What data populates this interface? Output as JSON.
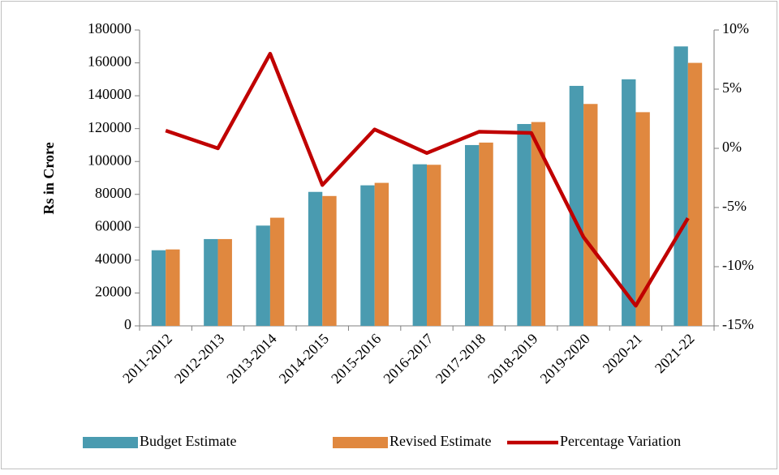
{
  "chart_data": {
    "type": "bar-line",
    "y_label": "Rs in Crore",
    "categories": [
      "2011-2012",
      "2012-2013",
      "2013-2014",
      "2014-2015",
      "2015-2016",
      "2016-2017",
      "2017-2018",
      "2018-2019",
      "2019-2020",
      "2020-21",
      "2021-22"
    ],
    "series": [
      {
        "name": "Budget Estimate",
        "type": "bar",
        "color": "#4a9bb0",
        "values": [
          46000,
          52800,
          61000,
          81500,
          85500,
          98300,
          110000,
          122800,
          146000,
          150000,
          170000
        ]
      },
      {
        "name": "Revised Estimate",
        "type": "bar",
        "color": "#e0883f",
        "values": [
          46500,
          52800,
          65800,
          79000,
          87000,
          98000,
          111500,
          124000,
          135000,
          130000,
          160000
        ]
      },
      {
        "name": "Percentage Variation",
        "type": "line",
        "axis": "y2",
        "color": "#c00000",
        "values": [
          1.5,
          0,
          8,
          -3.1,
          1.6,
          -0.4,
          1.4,
          1.3,
          -7.5,
          -13.3,
          -5.9
        ]
      }
    ],
    "ylim": [
      0,
      180000
    ],
    "yticks": [
      0,
      20000,
      40000,
      60000,
      80000,
      100000,
      120000,
      140000,
      160000,
      180000
    ],
    "y2lim": [
      -15,
      10
    ],
    "y2ticks": [
      {
        "value": -15,
        "label": "-15%"
      },
      {
        "value": -10,
        "label": "-10%"
      },
      {
        "value": -5,
        "label": "-5%"
      },
      {
        "value": 0,
        "label": "0%"
      },
      {
        "value": 5,
        "label": "5%"
      },
      {
        "value": 10,
        "label": "10%"
      }
    ],
    "legend": "bottom",
    "grid": false
  }
}
